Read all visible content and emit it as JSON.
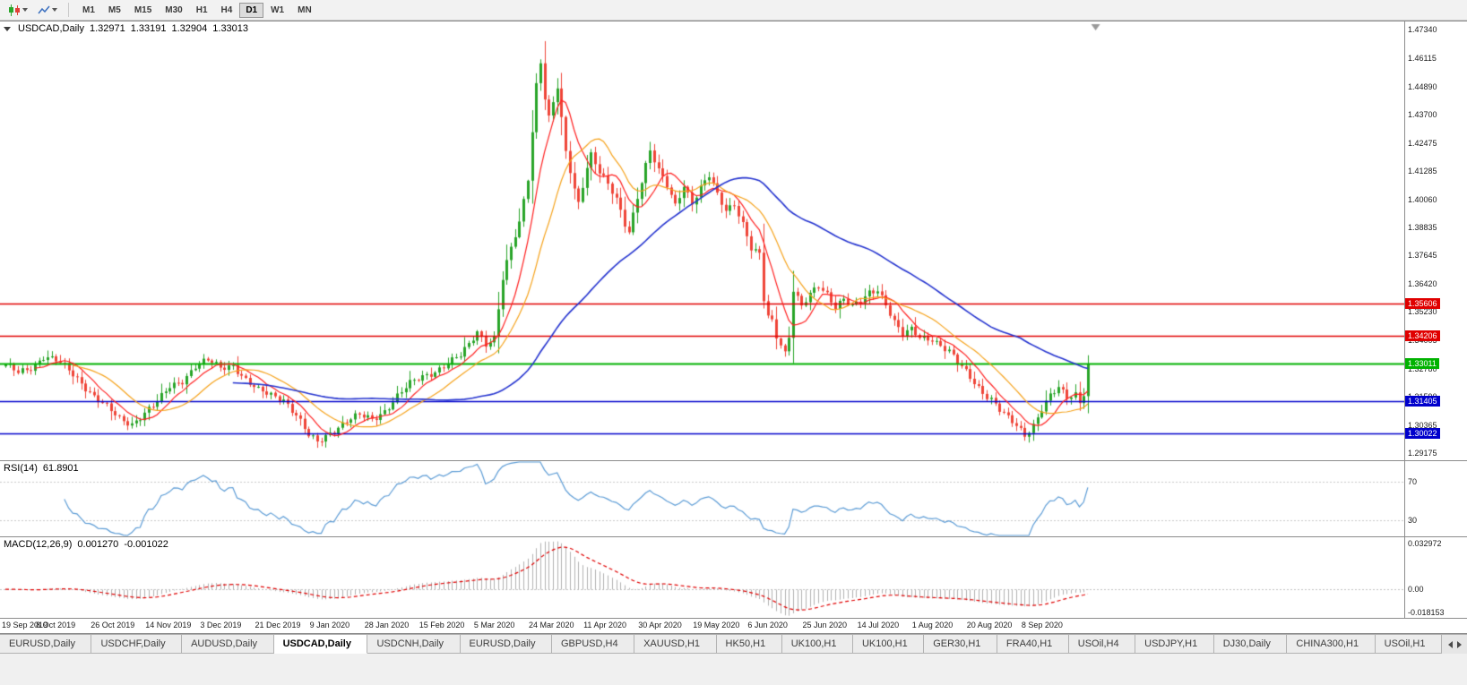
{
  "toolbar": {
    "timeframes": [
      {
        "label": "M1",
        "active": false
      },
      {
        "label": "M5",
        "active": false
      },
      {
        "label": "M15",
        "active": false
      },
      {
        "label": "M30",
        "active": false
      },
      {
        "label": "H1",
        "active": false
      },
      {
        "label": "H4",
        "active": false
      },
      {
        "label": "D1",
        "active": true
      },
      {
        "label": "W1",
        "active": false
      },
      {
        "label": "MN",
        "active": false
      }
    ]
  },
  "chart_data": {
    "type": "candlestick",
    "symbol": "USDCAD,Daily",
    "header": {
      "symbol": "USDCAD,Daily",
      "open": "1.32971",
      "high": "1.33191",
      "low": "1.32904",
      "close": "1.33013"
    },
    "bars": 258,
    "last_close": 1.33013,
    "ylim": [
      1.2887,
      1.4768
    ],
    "y_ticks": [
      "1.47340",
      "1.46115",
      "1.44890",
      "1.43700",
      "1.42475",
      "1.41285",
      "1.40060",
      "1.38835",
      "1.37645",
      "1.36420",
      "1.35230",
      "1.34005",
      "1.32780",
      "1.31590",
      "1.30365",
      "1.29175"
    ],
    "x_labels": [
      {
        "bar": 0,
        "label": "19 Sep 2019"
      },
      {
        "bar": 13,
        "label": "8 Oct 2019"
      },
      {
        "bar": 26,
        "label": "26 Oct 2019"
      },
      {
        "bar": 39,
        "label": "14 Nov 2019"
      },
      {
        "bar": 52,
        "label": "3 Dec 2019"
      },
      {
        "bar": 65,
        "label": "21 Dec 2019"
      },
      {
        "bar": 78,
        "label": "9 Jan 2020"
      },
      {
        "bar": 91,
        "label": "28 Jan 2020"
      },
      {
        "bar": 104,
        "label": "15 Feb 2020"
      },
      {
        "bar": 117,
        "label": "5 Mar 2020"
      },
      {
        "bar": 130,
        "label": "24 Mar 2020"
      },
      {
        "bar": 143,
        "label": "11 Apr 2020"
      },
      {
        "bar": 156,
        "label": "30 Apr 2020"
      },
      {
        "bar": 169,
        "label": "19 May 2020"
      },
      {
        "bar": 182,
        "label": "6 Jun 2020"
      },
      {
        "bar": 195,
        "label": "25 Jun 2020"
      },
      {
        "bar": 208,
        "label": "14 Jul 2020"
      },
      {
        "bar": 221,
        "label": "1 Aug 2020"
      },
      {
        "bar": 234,
        "label": "20 Aug 2020"
      },
      {
        "bar": 247,
        "label": "8 Sep 2020"
      }
    ],
    "price_anchors": [
      [
        0,
        1.329
      ],
      [
        3,
        1.3262
      ],
      [
        6,
        1.3288
      ],
      [
        9,
        1.3332
      ],
      [
        12,
        1.3312
      ],
      [
        15,
        1.3272
      ],
      [
        18,
        1.3222
      ],
      [
        21,
        1.3162
      ],
      [
        24,
        1.3112
      ],
      [
        27,
        1.3062
      ],
      [
        30,
        1.3046
      ],
      [
        33,
        1.3092
      ],
      [
        36,
        1.3132
      ],
      [
        39,
        1.3202
      ],
      [
        42,
        1.3232
      ],
      [
        45,
        1.3292
      ],
      [
        48,
        1.3312
      ],
      [
        51,
        1.3282
      ],
      [
        54,
        1.3298
      ],
      [
        57,
        1.3232
      ],
      [
        60,
        1.3182
      ],
      [
        63,
        1.3166
      ],
      [
        66,
        1.3152
      ],
      [
        69,
        1.3082
      ],
      [
        72,
        1.2988
      ],
      [
        74,
        1.2962
      ],
      [
        76,
        1.2992
      ],
      [
        78,
        1.3022
      ],
      [
        81,
        1.3056
      ],
      [
        84,
        1.3076
      ],
      [
        87,
        1.3062
      ],
      [
        90,
        1.3102
      ],
      [
        93,
        1.3162
      ],
      [
        96,
        1.3212
      ],
      [
        99,
        1.3246
      ],
      [
        102,
        1.3272
      ],
      [
        105,
        1.3302
      ],
      [
        108,
        1.3332
      ],
      [
        110,
        1.3382
      ],
      [
        112,
        1.3442
      ],
      [
        114,
        1.3392
      ],
      [
        116,
        1.3412
      ],
      [
        118,
        1.3662
      ],
      [
        120,
        1.3792
      ],
      [
        122,
        1.3902
      ],
      [
        124,
        1.4102
      ],
      [
        126,
        1.4502
      ],
      [
        127,
        1.4602
      ],
      [
        128,
        1.4442
      ],
      [
        129,
        1.4352
      ],
      [
        131,
        1.4482
      ],
      [
        133,
        1.4202
      ],
      [
        135,
        1.4052
      ],
      [
        136,
        1.3992
      ],
      [
        138,
        1.4152
      ],
      [
        139,
        1.4202
      ],
      [
        141,
        1.4122
      ],
      [
        143,
        1.4062
      ],
      [
        145,
        1.4002
      ],
      [
        147,
        1.3902
      ],
      [
        148,
        1.3872
      ],
      [
        150,
        1.4022
      ],
      [
        152,
        1.4152
      ],
      [
        153,
        1.4212
      ],
      [
        155,
        1.4122
      ],
      [
        157,
        1.4062
      ],
      [
        159,
        1.3982
      ],
      [
        161,
        1.4072
      ],
      [
        163,
        1.3992
      ],
      [
        165,
        1.4052
      ],
      [
        167,
        1.4102
      ],
      [
        169,
        1.4022
      ],
      [
        171,
        1.3962
      ],
      [
        173,
        1.3992
      ],
      [
        175,
        1.3902
      ],
      [
        177,
        1.3792
      ],
      [
        179,
        1.3762
      ],
      [
        180,
        1.3572
      ],
      [
        181,
        1.3502
      ],
      [
        182,
        1.3482
      ],
      [
        183,
        1.3422
      ],
      [
        184,
        1.3392
      ],
      [
        185,
        1.3352
      ],
      [
        186,
        1.3422
      ],
      [
        187,
        1.3622
      ],
      [
        189,
        1.3542
      ],
      [
        191,
        1.3592
      ],
      [
        193,
        1.3632
      ],
      [
        195,
        1.3602
      ],
      [
        197,
        1.3552
      ],
      [
        199,
        1.3582
      ],
      [
        201,
        1.3542
      ],
      [
        203,
        1.3562
      ],
      [
        205,
        1.3602
      ],
      [
        207,
        1.3622
      ],
      [
        209,
        1.3562
      ],
      [
        211,
        1.3482
      ],
      [
        213,
        1.3422
      ],
      [
        215,
        1.3442
      ],
      [
        217,
        1.3412
      ],
      [
        220,
        1.3412
      ],
      [
        222,
        1.3382
      ],
      [
        224,
        1.3352
      ],
      [
        226,
        1.3302
      ],
      [
        228,
        1.3262
      ],
      [
        230,
        1.3222
      ],
      [
        232,
        1.3182
      ],
      [
        234,
        1.3152
      ],
      [
        236,
        1.3102
      ],
      [
        238,
        1.3062
      ],
      [
        240,
        1.3032
      ],
      [
        242,
        1.2996
      ],
      [
        244,
        1.3042
      ],
      [
        246,
        1.3112
      ],
      [
        248,
        1.3162
      ],
      [
        250,
        1.3192
      ],
      [
        252,
        1.3152
      ],
      [
        254,
        1.3172
      ],
      [
        255,
        1.3132
      ],
      [
        256,
        1.3162
      ],
      [
        257,
        1.33013
      ]
    ],
    "levels": [
      {
        "price": 1.35606,
        "label": "1.35606",
        "color": "#e00000",
        "width": 1.6
      },
      {
        "price": 1.34206,
        "label": "1.34206",
        "color": "#e00000",
        "width": 1.6
      },
      {
        "price": 1.33011,
        "label": "1.33011",
        "color": "#00b200",
        "width": 2
      },
      {
        "price": 1.31405,
        "label": "1.31405",
        "color": "#0000cc",
        "width": 1.6
      },
      {
        "price": 1.30022,
        "label": "1.30022",
        "color": "#0000cc",
        "width": 1.6
      }
    ],
    "moving_averages": [
      {
        "name": "fast",
        "period": 8,
        "color": "#ff2020",
        "width": 1.2
      },
      {
        "name": "medium",
        "period": 17,
        "color": "#f5a21b",
        "width": 1.2
      },
      {
        "name": "slow",
        "period": 55,
        "color": "#2433cf",
        "width": 1.6
      }
    ],
    "colors": {
      "up": "#28a428",
      "down": "#ef4538",
      "bg": "#ffffff",
      "border": "#8c8c8c"
    },
    "rsi": {
      "name": "RSI(14)",
      "value": "61.8901",
      "period": 14,
      "color": "#5b9bd5",
      "ylim": [
        13,
        92
      ],
      "level_lines": [
        70,
        30
      ],
      "axis_labels": [
        "70",
        "30"
      ]
    },
    "macd": {
      "name": "MACD(12,26,9)",
      "value": "0.001270",
      "signal_value": "-0.001022",
      "fast": 12,
      "slow": 26,
      "signal": 9,
      "hist_color": "#b0b0b0",
      "signal_color": "#e00000",
      "ylim": [
        -0.018153,
        0.032972
      ],
      "axis": {
        "max": "0.032972",
        "zero": "0.00",
        "min": "-0.018153"
      }
    }
  },
  "tabs": {
    "items": [
      {
        "label": "EURUSD,Daily",
        "active": false
      },
      {
        "label": "USDCHF,Daily",
        "active": false
      },
      {
        "label": "AUDUSD,Daily",
        "active": false
      },
      {
        "label": "USDCAD,Daily",
        "active": true
      },
      {
        "label": "USDCNH,Daily",
        "active": false
      },
      {
        "label": "EURUSD,Daily",
        "active": false
      },
      {
        "label": "GBPUSD,H4",
        "active": false
      },
      {
        "label": "XAUUSD,H1",
        "active": false
      },
      {
        "label": "HK50,H1",
        "active": false
      },
      {
        "label": "UK100,H1",
        "active": false
      },
      {
        "label": "UK100,H1",
        "active": false
      },
      {
        "label": "GER30,H1",
        "active": false
      },
      {
        "label": "FRA40,H1",
        "active": false
      },
      {
        "label": "USOil,H4",
        "active": false
      },
      {
        "label": "USDJPY,H1",
        "active": false
      },
      {
        "label": "DJ30,Daily",
        "active": false
      },
      {
        "label": "CHINA300,H1",
        "active": false
      },
      {
        "label": "USOil,H1",
        "active": false
      }
    ]
  }
}
